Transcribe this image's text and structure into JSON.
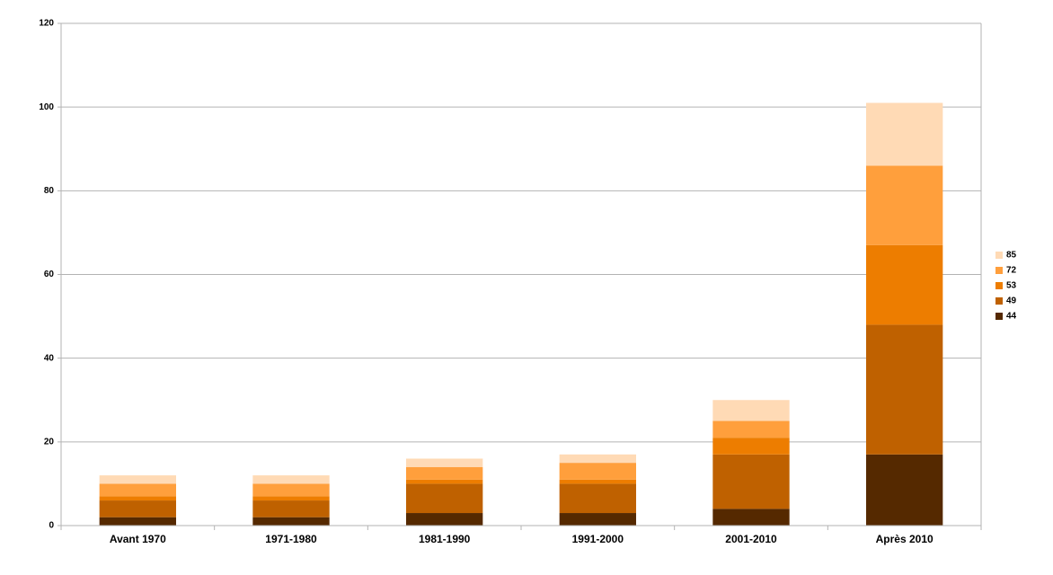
{
  "chart_data": {
    "type": "stacked-bar",
    "categories": [
      "Avant 1970",
      "1971-1980",
      "1981-1990",
      "1991-2000",
      "2001-2010",
      "Après 2010"
    ],
    "series": [
      {
        "name": "44",
        "color": "#552900",
        "values": [
          2,
          2,
          3,
          3,
          4,
          17
        ]
      },
      {
        "name": "49",
        "color": "#bf6100",
        "values": [
          4,
          4,
          7,
          7,
          13,
          31
        ]
      },
      {
        "name": "53",
        "color": "#ed7d00",
        "values": [
          1,
          1,
          1,
          1,
          4,
          19
        ]
      },
      {
        "name": "72",
        "color": "#ff9f3c",
        "values": [
          3,
          3,
          3,
          4,
          4,
          19
        ]
      },
      {
        "name": "85",
        "color": "#ffdab5",
        "values": [
          2,
          2,
          2,
          2,
          5,
          15
        ]
      }
    ],
    "ylim": [
      0,
      120
    ],
    "yticks": [
      0,
      20,
      40,
      60,
      80,
      100,
      120
    ],
    "grid": true,
    "legend": "right"
  }
}
